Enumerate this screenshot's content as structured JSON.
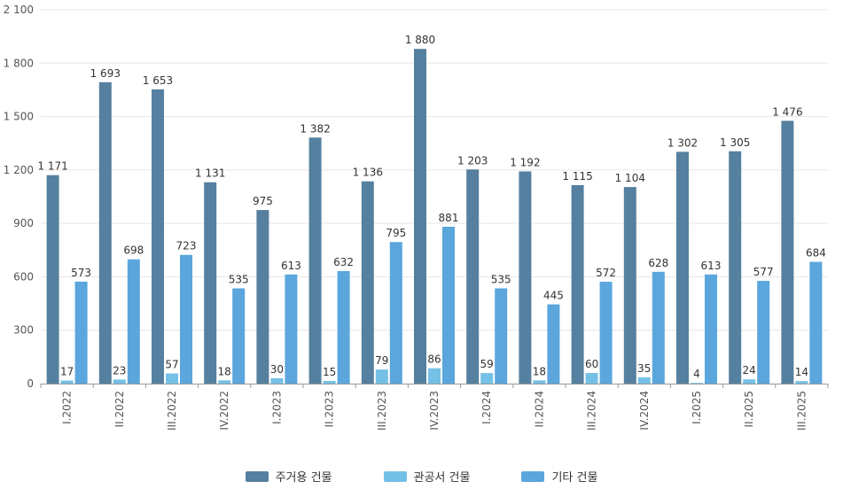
{
  "chart_data": {
    "type": "bar",
    "categories": [
      "I.2022",
      "II.2022",
      "III.2022",
      "IV.2022",
      "I.2023",
      "II.2023",
      "III.2023",
      "IV.2023",
      "I.2024",
      "II.2024",
      "III.2024",
      "IV.2024",
      "I.2025",
      "II.2025",
      "III.2025"
    ],
    "series": [
      {
        "name": "주거용 건물",
        "color": "#56809f",
        "values": [
          1171,
          1693,
          1653,
          1131,
          975,
          1382,
          1136,
          1880,
          1203,
          1192,
          1115,
          1104,
          1302,
          1305,
          1476
        ]
      },
      {
        "name": "관공서 건물",
        "color": "#74c0e6",
        "values": [
          17,
          23,
          57,
          18,
          30,
          15,
          79,
          86,
          59,
          18,
          60,
          35,
          4,
          24,
          14
        ]
      },
      {
        "name": "기타 건물",
        "color": "#5aa6dd",
        "values": [
          573,
          698,
          723,
          535,
          613,
          632,
          795,
          881,
          535,
          445,
          572,
          628,
          613,
          577,
          684
        ]
      }
    ],
    "value_labels": [
      [
        "1 171",
        "1 693",
        "1 653",
        "1 131",
        "975",
        "1 382",
        "1 136",
        "1 880",
        "1 203",
        "1 192",
        "1 115",
        "1 104",
        "1 302",
        "1 305",
        "1 476"
      ],
      [
        "17",
        "23",
        "57",
        "18",
        "30",
        "15",
        "79",
        "86",
        "59",
        "18",
        "60",
        "35",
        "4",
        "24",
        "14"
      ],
      [
        "573",
        "698",
        "723",
        "535",
        "613",
        "632",
        "795",
        "881",
        "535",
        "445",
        "572",
        "628",
        "613",
        "577",
        "684"
      ]
    ],
    "yticks": [
      0,
      300,
      600,
      900,
      1200,
      1500,
      1800,
      2100
    ],
    "ytick_labels": [
      "0",
      "300",
      "600",
      "900",
      "1 200",
      "1 500",
      "1 800",
      "2 100"
    ],
    "ylim": [
      0,
      2100
    ],
    "grid": true,
    "legend": "bottom-center"
  }
}
